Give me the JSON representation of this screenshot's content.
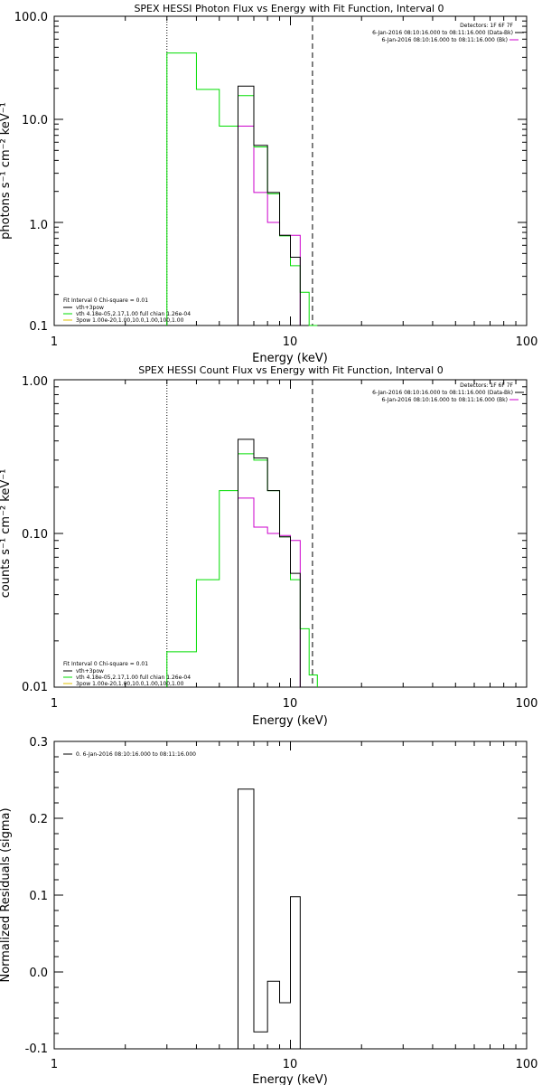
{
  "figure": {
    "colors": {
      "total": "#000000",
      "model": "#00dd00",
      "thermal": "#cc00cc",
      "powerlaw": "#e0c000",
      "axis": "#000000"
    }
  },
  "chart_data": [
    {
      "type": "line",
      "id": "photon",
      "title": "SPEX HESSI Photon Flux vs Energy with Fit Function, Interval 0",
      "xlabel": "Energy (keV)",
      "ylabel": "photons s⁻¹ cm⁻² keV⁻¹",
      "xscale": "log",
      "yscale": "log",
      "xlim": [
        1,
        100
      ],
      "ylim": [
        0.1,
        100
      ],
      "xticks": [
        1,
        10,
        100
      ],
      "xtick_labels": [
        "1",
        "10",
        "100"
      ],
      "yticks": [
        0.1,
        1,
        10,
        100
      ],
      "ytick_labels": [
        "0.1",
        "1.0",
        "10.0",
        "100.0"
      ],
      "vlines": [
        {
          "x": 3.0,
          "style": "dotted"
        },
        {
          "x": 12.4,
          "style": "dashed"
        }
      ],
      "header": [
        "Detectors: 1F 6F 7F",
        "6-Jan-2016 08:10:16.000 to 08:11:16.000 (Data-Bk)",
        "6-Jan-2016 08:10:16.000 to 08:11:16.000 (Bk)"
      ],
      "legend_title": "Fit Interval  0   Chi-square = 0.01",
      "legend_entries": [
        {
          "label": "vth+3pow",
          "color": "#000000"
        },
        {
          "label": "vth 4.18e-05,2.17,1.00  full chian 1.26e-04",
          "color": "#00dd00"
        },
        {
          "label": "3pow 1.00e-20,1.00,10.0,1.00,100,1.00",
          "color": "#e0c000"
        }
      ],
      "grid": false,
      "legend_position": "bottom-left",
      "edges": [
        3.0,
        4.0,
        5.0,
        6.0,
        7.0,
        8.0,
        9.0,
        10.0,
        11.0,
        12.0,
        13.0
      ],
      "series": [
        {
          "key": "data",
          "color": "#000000",
          "values": [
            null,
            null,
            null,
            21.0,
            5.6,
            1.95,
            0.75,
            0.46,
            null,
            null
          ]
        },
        {
          "key": "model",
          "color": "#00dd00",
          "values": [
            44.0,
            19.5,
            8.6,
            17.0,
            5.4,
            1.9,
            0.74,
            0.38,
            0.21,
            0.1
          ]
        },
        {
          "key": "thermal",
          "color": "#cc00cc",
          "values": [
            null,
            null,
            null,
            8.6,
            1.95,
            1.0,
            0.75,
            0.75,
            null,
            null
          ]
        }
      ]
    },
    {
      "type": "line",
      "id": "count",
      "title": "SPEX HESSI Count Flux vs Energy with Fit Function, Interval 0",
      "xlabel": "Energy (keV)",
      "ylabel": "counts s⁻¹ cm⁻² keV⁻¹",
      "xscale": "log",
      "yscale": "log",
      "xlim": [
        1,
        100
      ],
      "ylim": [
        0.01,
        1
      ],
      "xticks": [
        1,
        10,
        100
      ],
      "xtick_labels": [
        "1",
        "10",
        "100"
      ],
      "yticks": [
        0.01,
        0.1,
        1
      ],
      "ytick_labels": [
        "0.01",
        "0.10",
        "1.00"
      ],
      "vlines": [
        {
          "x": 3.0,
          "style": "dotted"
        },
        {
          "x": 12.4,
          "style": "dashed"
        }
      ],
      "header": [
        "Detectors: 1F 6F 7F",
        "6-Jan-2016 08:10:16.000 to 08:11:16.000 (Data-Bk)",
        "6-Jan-2016 08:10:16.000 to 08:11:16.000 (Bk)"
      ],
      "legend_title": "Fit Interval  0   Chi-square = 0.01",
      "legend_entries": [
        {
          "label": "vth+3pow",
          "color": "#000000"
        },
        {
          "label": "vth 4.18e-05,2.17,1.00  full chian 1.26e-04",
          "color": "#00dd00"
        },
        {
          "label": "3pow 1.00e-20,1.00,10.0,1.00,100,1.00",
          "color": "#e0c000"
        }
      ],
      "grid": false,
      "legend_position": "bottom-left",
      "edges": [
        3.0,
        4.0,
        5.0,
        6.0,
        7.0,
        8.0,
        9.0,
        10.0,
        11.0,
        12.0,
        13.0
      ],
      "series": [
        {
          "key": "data",
          "color": "#000000",
          "values": [
            null,
            null,
            null,
            0.41,
            0.31,
            0.19,
            0.095,
            0.055,
            null,
            null
          ]
        },
        {
          "key": "model",
          "color": "#00dd00",
          "values": [
            0.017,
            0.05,
            0.19,
            0.33,
            0.3,
            0.19,
            0.095,
            0.05,
            0.024,
            0.012
          ]
        },
        {
          "key": "thermal",
          "color": "#cc00cc",
          "values": [
            null,
            null,
            null,
            0.17,
            0.11,
            0.1,
            0.097,
            0.09,
            null,
            null
          ]
        }
      ]
    },
    {
      "type": "line",
      "id": "resid",
      "title": "",
      "xlabel": "Energy (keV)",
      "ylabel": "Normalized Residuals (sigma)",
      "xscale": "log",
      "yscale": "linear",
      "xlim": [
        1,
        100
      ],
      "ylim": [
        -0.1,
        0.3
      ],
      "xticks": [
        1,
        10,
        100
      ],
      "xtick_labels": [
        "1",
        "10",
        "100"
      ],
      "yticks": [
        -0.1,
        0.0,
        0.1,
        0.2,
        0.3
      ],
      "ytick_labels": [
        "-0.1",
        "0.0",
        "0.1",
        "0.2",
        "0.3"
      ],
      "vlines": [],
      "header": [],
      "legend_title": "",
      "legend_entries": [
        {
          "label": "0.  6-Jan-2016 08:10:16.000 to 08:11:16.000",
          "color": "#000000"
        }
      ],
      "grid": false,
      "legend_position": "top-left",
      "edges": [
        6.0,
        7.0,
        8.0,
        9.0,
        10.0,
        11.0
      ],
      "series": [
        {
          "key": "resid",
          "color": "#000000",
          "values": [
            0.238,
            -0.078,
            -0.012,
            -0.04,
            0.098
          ]
        }
      ]
    }
  ]
}
